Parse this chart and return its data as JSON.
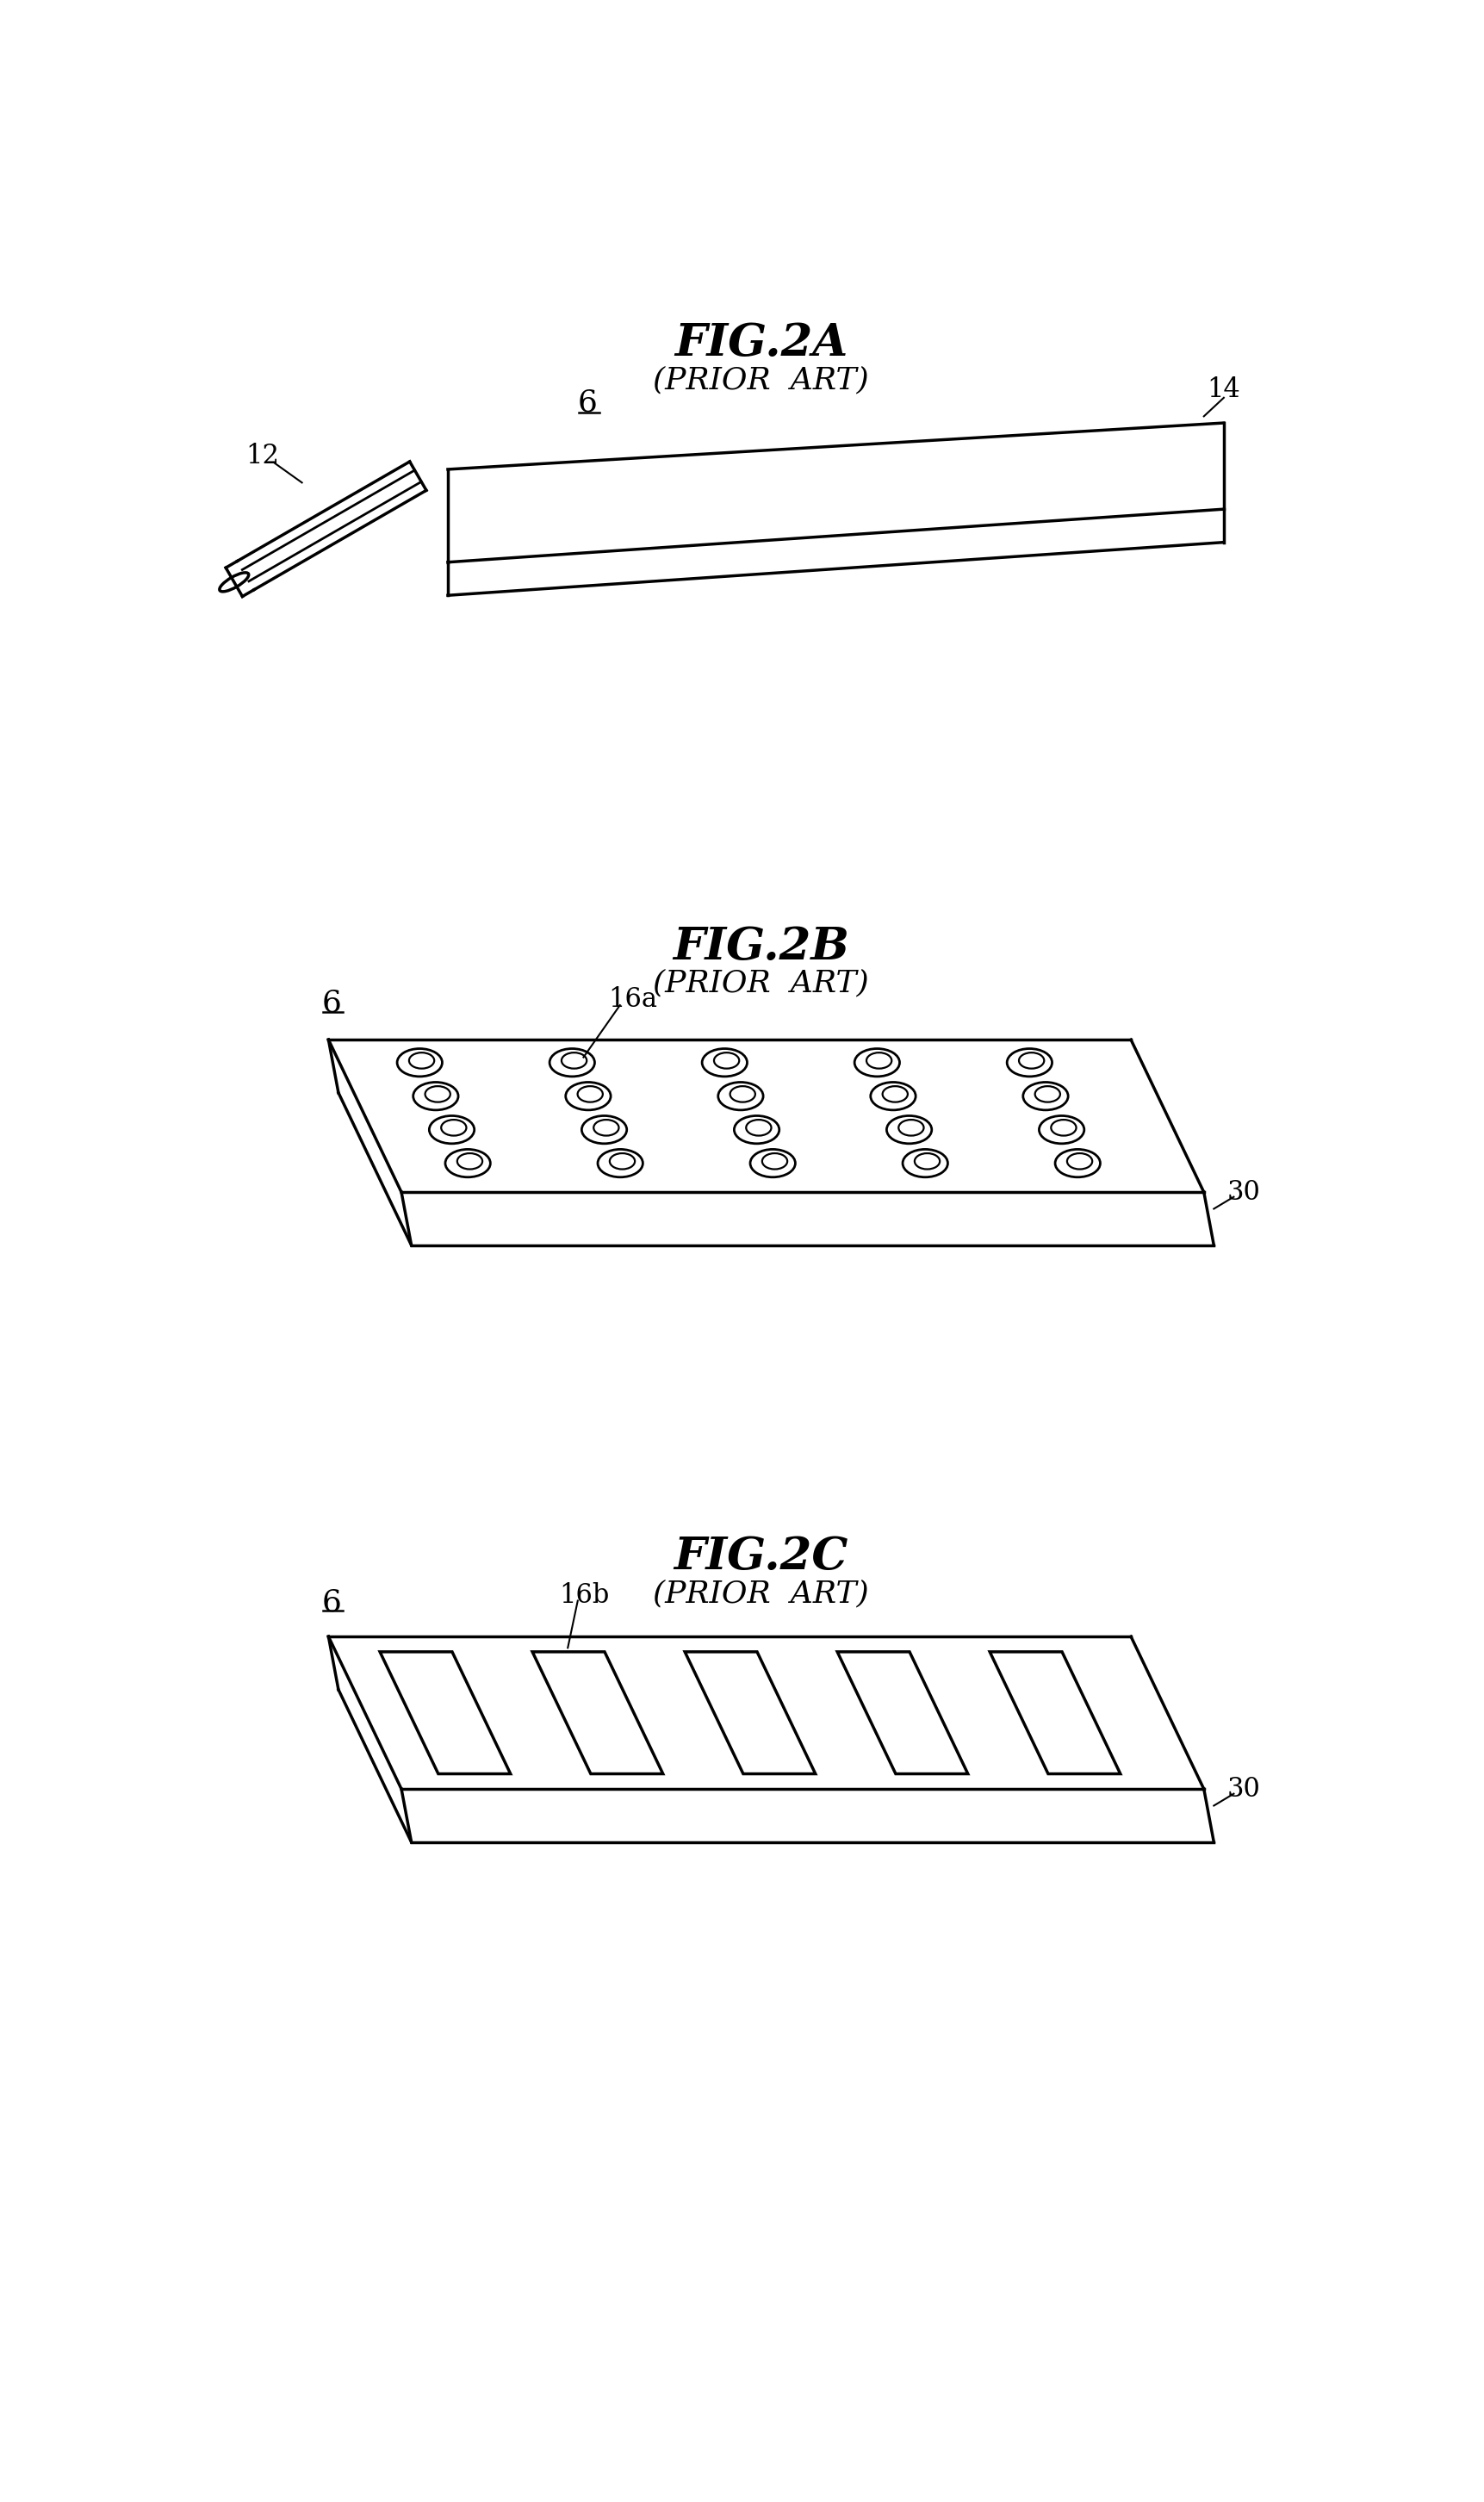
{
  "background_color": "#ffffff",
  "fig_width": 17.23,
  "fig_height": 29.05,
  "title_2a": "FIG.2A",
  "subtitle_2a": "(PRIOR  ART)",
  "title_2b": "FIG.2B",
  "subtitle_2b": "(PRIOR  ART)",
  "title_2c": "FIG.2C",
  "subtitle_2c": "(PRIOR  ART)",
  "label_6": "6",
  "label_14": "14",
  "label_12": "12",
  "label_16a": "16a",
  "label_30b": "30",
  "label_16b": "16b",
  "label_30c": "30",
  "line_color": "#000000",
  "line_width": 2.0,
  "font_size_title": 38,
  "font_size_subtitle": 26,
  "font_size_label": 22
}
